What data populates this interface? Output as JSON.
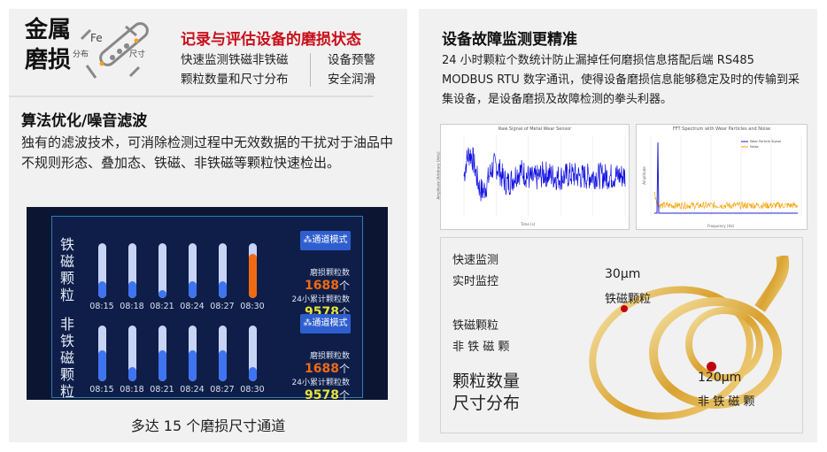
{
  "left": {
    "title_line1": "金属",
    "title_line2": "磨损",
    "logo": {
      "fe": "Fe",
      "left": "分布",
      "right": "尺寸"
    },
    "headline": "记录与评估设备的磨损状态",
    "features_a": [
      "快速监测铁磁非铁磁",
      "颗粒数量和尺寸分布"
    ],
    "features_b": [
      "设备预警",
      "安全润滑"
    ],
    "section_title": "算法优化/噪音滤波",
    "section_body": "独有的滤波技术，可消除检测过程中无效数据的干扰对于油品中不规则形态、叠加态、铁磁、非铁磁等颗粒快速检出。",
    "caption": "多达 15 个磨损尺寸通道"
  },
  "dashboard": {
    "times": [
      "08:15",
      "08:18",
      "08:21",
      "08:24",
      "08:27",
      "08:30"
    ],
    "rows": [
      {
        "label": "铁磁颗粒",
        "mode_label": "通道模式",
        "wear_label": "磨损颗粒数",
        "wear_value": "1688",
        "unit": "个",
        "total_label": "24小累计颗粒数",
        "total_value": "9578",
        "levels": [
          0.3,
          0.3,
          0.15,
          0.3,
          0.3,
          0.8
        ],
        "alert": [
          false,
          false,
          false,
          false,
          false,
          true
        ]
      },
      {
        "label": "非铁磁颗粒",
        "mode_label": "通道模式",
        "wear_label": "磨损颗粒数",
        "wear_value": "1688",
        "unit": "个",
        "total_label": "24小累计颗粒数",
        "total_value": "9578",
        "levels": [
          0.55,
          0.25,
          0.55,
          0.55,
          0.55,
          0.25
        ],
        "alert": [
          false,
          false,
          false,
          false,
          false,
          false
        ]
      }
    ],
    "colors": {
      "bar": "#3f74f0",
      "alert": "#f06a12",
      "track": "#c8d4f5",
      "wear": "#f06a12",
      "total": "#e8e33a"
    }
  },
  "right": {
    "title": "设备故障监测更精准",
    "body": "24 小时颗粒个数统计防止漏掉任何磨损信息搭配后端 RS485 MODBUS RTU 数字通讯，使得设备磨损信息能够稳定及时的传输到采集设备，是设备磨损及故障检测的拳头利器。",
    "list1": [
      "快速监测",
      "实时监控"
    ],
    "list2": [
      "铁磁颗粒",
      "非 铁 磁 颗"
    ],
    "list3": [
      "颗粒数量",
      "尺寸分布"
    ],
    "p1": {
      "size": "30μm",
      "type": "铁磁颗粒"
    },
    "p2": {
      "size": "120μm",
      "type": "非 铁 磁 颗"
    }
  },
  "chart_data": [
    {
      "type": "line",
      "title": "Raw Signal of Metal Wear Sensor",
      "xlabel": "Time (s)",
      "ylabel": "Amplitude (Arbitrary Units)",
      "xlim": [
        0,
        10
      ],
      "ylim": [
        -1.2,
        1.3
      ],
      "series": [
        {
          "color": "#1010e0"
        }
      ]
    },
    {
      "type": "line",
      "title": "FFT Spectrum with Wear Particles and Noise",
      "xlabel": "Frequency (Hz)",
      "ylabel": "Amplitude",
      "ylim": [
        0,
        110
      ],
      "legend": "top-right",
      "series": [
        {
          "name": "Wear Particle Signal",
          "color": "#2020d0",
          "peak": 100
        },
        {
          "name": "Noise",
          "color": "#f5a000"
        }
      ]
    }
  ]
}
